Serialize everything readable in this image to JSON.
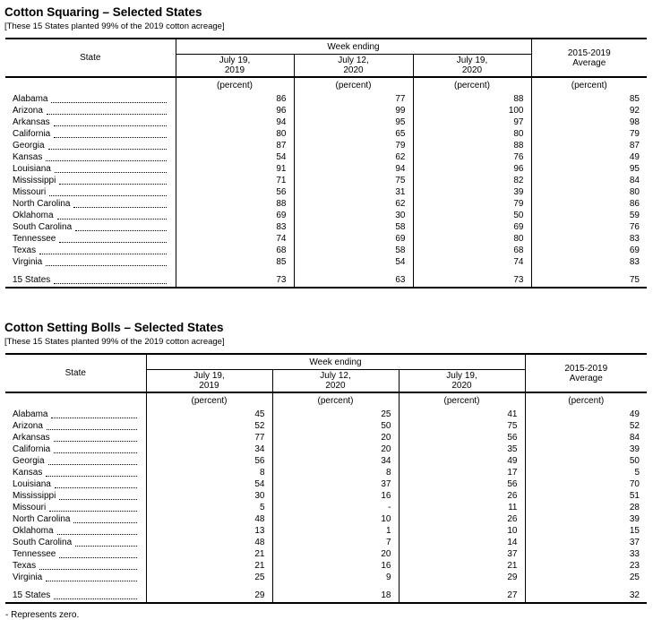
{
  "tables": [
    {
      "title": "Cotton Squaring – Selected States",
      "subtitle": "[These 15 States planted 99% of the 2019 cotton acreage]",
      "header": {
        "state_label": "State",
        "week_ending_label": "Week ending",
        "columns": [
          "July 19,\n2019",
          "July 12,\n2020",
          "July 19,\n2020"
        ],
        "average_label": "2015-2019\nAverage",
        "unit_label": "(percent)"
      },
      "rows": [
        {
          "state": "Alabama",
          "values": [
            "86",
            "77",
            "88",
            "85"
          ]
        },
        {
          "state": "Arizona",
          "values": [
            "96",
            "99",
            "100",
            "92"
          ]
        },
        {
          "state": "Arkansas",
          "values": [
            "94",
            "95",
            "97",
            "98"
          ]
        },
        {
          "state": "California",
          "values": [
            "80",
            "65",
            "80",
            "79"
          ]
        },
        {
          "state": "Georgia",
          "values": [
            "87",
            "79",
            "88",
            "87"
          ]
        },
        {
          "state": "Kansas",
          "values": [
            "54",
            "62",
            "76",
            "49"
          ]
        },
        {
          "state": "Louisiana",
          "values": [
            "91",
            "94",
            "96",
            "95"
          ]
        },
        {
          "state": "Mississippi",
          "values": [
            "71",
            "75",
            "82",
            "84"
          ]
        },
        {
          "state": "Missouri",
          "values": [
            "56",
            "31",
            "39",
            "80"
          ]
        },
        {
          "state": "North Carolina",
          "values": [
            "88",
            "62",
            "79",
            "86"
          ]
        },
        {
          "state": "Oklahoma",
          "values": [
            "69",
            "30",
            "50",
            "59"
          ]
        },
        {
          "state": "South Carolina",
          "values": [
            "83",
            "58",
            "69",
            "76"
          ]
        },
        {
          "state": "Tennessee",
          "values": [
            "74",
            "69",
            "80",
            "83"
          ]
        },
        {
          "state": "Texas",
          "values": [
            "68",
            "58",
            "68",
            "69"
          ]
        },
        {
          "state": "Virginia",
          "values": [
            "85",
            "54",
            "74",
            "83"
          ]
        }
      ],
      "total_row": {
        "state": "15 States",
        "values": [
          "73",
          "63",
          "73",
          "75"
        ]
      }
    },
    {
      "title": "Cotton Setting Bolls – Selected States",
      "subtitle": "[These 15 States planted 99% of the 2019 cotton acreage]",
      "header": {
        "state_label": "State",
        "week_ending_label": "Week ending",
        "columns": [
          "July 19,\n2019",
          "July 12,\n2020",
          "July 19,\n2020"
        ],
        "average_label": "2015-2019\nAverage",
        "unit_label": "(percent)"
      },
      "rows": [
        {
          "state": "Alabama",
          "values": [
            "45",
            "25",
            "41",
            "49"
          ]
        },
        {
          "state": "Arizona",
          "values": [
            "52",
            "50",
            "75",
            "52"
          ]
        },
        {
          "state": "Arkansas",
          "values": [
            "77",
            "20",
            "56",
            "84"
          ]
        },
        {
          "state": "California",
          "values": [
            "34",
            "20",
            "35",
            "39"
          ]
        },
        {
          "state": "Georgia",
          "values": [
            "56",
            "34",
            "49",
            "50"
          ]
        },
        {
          "state": "Kansas",
          "values": [
            "8",
            "8",
            "17",
            "5"
          ]
        },
        {
          "state": "Louisiana",
          "values": [
            "54",
            "37",
            "56",
            "70"
          ]
        },
        {
          "state": "Mississippi",
          "values": [
            "30",
            "16",
            "26",
            "51"
          ]
        },
        {
          "state": "Missouri",
          "values": [
            "5",
            "-",
            "11",
            "28"
          ]
        },
        {
          "state": "North Carolina",
          "values": [
            "48",
            "10",
            "26",
            "39"
          ]
        },
        {
          "state": "Oklahoma",
          "values": [
            "13",
            "1",
            "10",
            "15"
          ]
        },
        {
          "state": "South Carolina",
          "values": [
            "48",
            "7",
            "14",
            "37"
          ]
        },
        {
          "state": "Tennessee",
          "values": [
            "21",
            "20",
            "37",
            "33"
          ]
        },
        {
          "state": "Texas",
          "values": [
            "21",
            "16",
            "21",
            "23"
          ]
        },
        {
          "state": "Virginia",
          "values": [
            "25",
            "9",
            "29",
            "25"
          ]
        }
      ],
      "total_row": {
        "state": "15 States",
        "values": [
          "29",
          "18",
          "27",
          "32"
        ]
      }
    }
  ],
  "footnote": "- Represents zero."
}
